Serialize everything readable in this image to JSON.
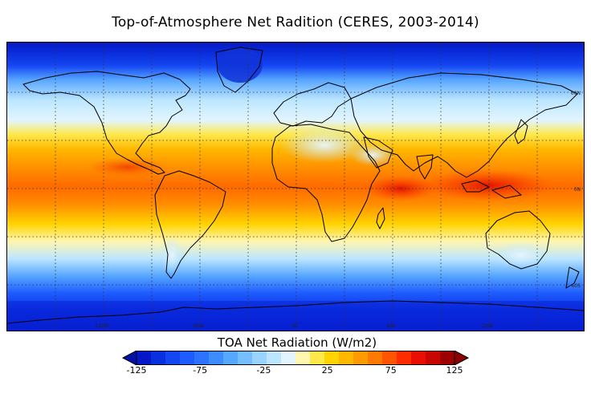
{
  "title": "Top-of-Atmosphere Net Radition (CERES, 2003-2014)",
  "map": {
    "lon_labels": [
      "120W",
      "60W",
      "0E",
      "60E",
      "120E"
    ],
    "lat_labels": [
      "60N",
      "0N",
      "60S"
    ]
  },
  "colorbar": {
    "title": "TOA Net Radiation (W/m2)",
    "ticks": [
      "-125",
      "-75",
      "-25",
      "25",
      "75",
      "125"
    ],
    "tick_values": [
      -125,
      -75,
      -25,
      25,
      75,
      125
    ],
    "range": [
      -125,
      125
    ],
    "extend": "both",
    "colors": [
      "#0418c8",
      "#0a2fe0",
      "#1446f2",
      "#1e5cff",
      "#2c74ff",
      "#3e8cff",
      "#57a6ff",
      "#76bfff",
      "#98d4ff",
      "#bce6ff",
      "#e2f5ff",
      "#fff6b0",
      "#ffe84a",
      "#ffd400",
      "#ffb800",
      "#ff9a00",
      "#ff7a00",
      "#ff5500",
      "#ff2c00",
      "#e80e00",
      "#c80600",
      "#9c0000"
    ],
    "under_color": "#0010a8",
    "over_color": "#8a0000"
  }
}
